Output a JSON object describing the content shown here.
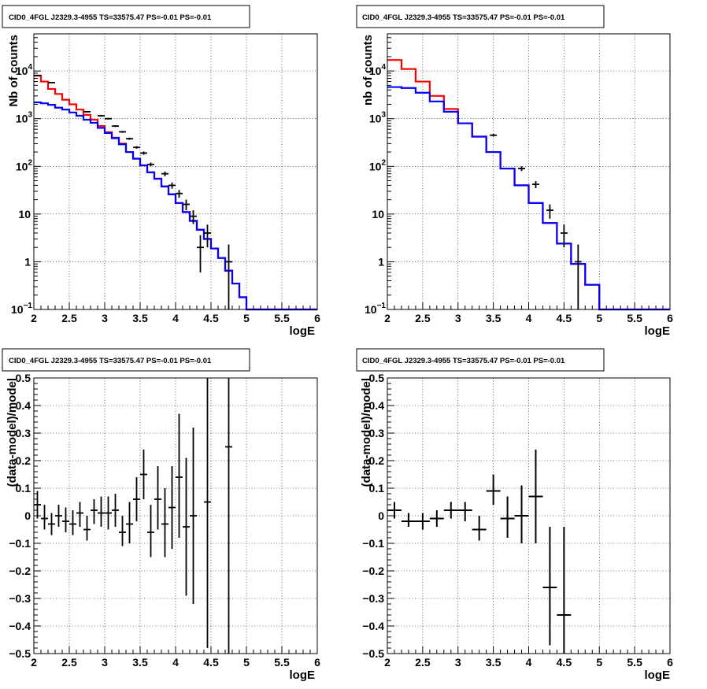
{
  "chart_data": [
    {
      "type": "histogram",
      "title": "CID0_4FGL J2329.3-4955 TS=33575.47 PS=-0.01 PS=-0.01",
      "xlabel": "logE",
      "ylabel": "Nb of counts",
      "xlim": [
        2,
        6
      ],
      "ylim": [
        0.1,
        60000
      ],
      "yscale": "log",
      "xticks": [
        "2",
        "2.5",
        "3",
        "3.5",
        "4",
        "4.5",
        "5",
        "5.5",
        "6"
      ],
      "yticks": [
        {
          "v": 0.1,
          "label": "10",
          "exp": "−1"
        },
        {
          "v": 1,
          "label": "1",
          "exp": ""
        },
        {
          "v": 10,
          "label": "10",
          "exp": ""
        },
        {
          "v": 100,
          "label": "10",
          "exp": "2"
        },
        {
          "v": 1000,
          "label": "10",
          "exp": "3"
        },
        {
          "v": 10000,
          "label": "10",
          "exp": "4"
        }
      ],
      "grid": true,
      "series": [
        {
          "color": "#ff0000",
          "style": "step",
          "edges": [
            2.0,
            2.1,
            2.2,
            2.3,
            2.4,
            2.5,
            2.6,
            2.7,
            2.8,
            2.9,
            3.0,
            3.1,
            3.2,
            3.3,
            3.4,
            3.5,
            3.6,
            3.7,
            3.8,
            3.9,
            4.0,
            4.1,
            4.2,
            4.3,
            4.4,
            4.5,
            4.6,
            4.7,
            4.8,
            4.9,
            5.0,
            5.1,
            5.2,
            5.3,
            5.4,
            5.5,
            5.6,
            5.7,
            5.8,
            5.9,
            6.0
          ],
          "values": [
            8000,
            6000,
            4200,
            3300,
            2500,
            2000,
            1550,
            1200,
            950,
            700,
            520,
            400,
            300,
            200,
            145,
            105,
            75,
            55,
            38,
            26,
            17,
            11,
            7.2,
            4.7,
            3.0,
            1.9,
            1.2,
            0.65,
            0.35,
            0.18,
            0.1,
            0.1,
            0.1,
            0.1,
            0.1,
            0.1,
            0.1,
            0.1,
            0.1,
            0.1
          ]
        },
        {
          "color": "#0000ff",
          "style": "step",
          "edges": [
            2.0,
            2.1,
            2.2,
            2.3,
            2.4,
            2.5,
            2.6,
            2.7,
            2.8,
            2.9,
            3.0,
            3.1,
            3.2,
            3.3,
            3.4,
            3.5,
            3.6,
            3.7,
            3.8,
            3.9,
            4.0,
            4.1,
            4.2,
            4.3,
            4.4,
            4.5,
            4.6,
            4.7,
            4.8,
            4.9,
            5.0,
            5.1,
            5.2,
            5.3,
            5.4,
            5.5,
            5.6,
            5.7,
            5.8,
            5.9,
            6.0
          ],
          "values": [
            2200,
            2100,
            1950,
            1700,
            1550,
            1350,
            1150,
            950,
            820,
            640,
            500,
            390,
            290,
            200,
            145,
            105,
            75,
            55,
            38,
            26,
            17,
            11,
            7.2,
            4.7,
            3.0,
            1.9,
            1.2,
            0.65,
            0.35,
            0.18,
            0.1,
            0.1,
            0.1,
            0.1,
            0.1,
            0.1,
            0.1,
            0.1,
            0.1,
            0.1
          ]
        }
      ],
      "points": [
        {
          "x": 2.05,
          "y": 8000,
          "ylo": 7900,
          "yhi": 8100
        },
        {
          "x": 2.25,
          "y": 5700,
          "ylo": 5600,
          "yhi": 5800
        },
        {
          "x": 2.75,
          "y": 1400,
          "ylo": 1350,
          "yhi": 1450
        },
        {
          "x": 2.95,
          "y": 1150,
          "ylo": 1100,
          "yhi": 1200
        },
        {
          "x": 3.05,
          "y": 1000,
          "ylo": 960,
          "yhi": 1040
        },
        {
          "x": 3.15,
          "y": 700,
          "ylo": 670,
          "yhi": 730
        },
        {
          "x": 3.25,
          "y": 530,
          "ylo": 505,
          "yhi": 555
        },
        {
          "x": 3.35,
          "y": 380,
          "ylo": 360,
          "yhi": 400
        },
        {
          "x": 3.45,
          "y": 250,
          "ylo": 235,
          "yhi": 265
        },
        {
          "x": 3.55,
          "y": 190,
          "ylo": 175,
          "yhi": 205
        },
        {
          "x": 3.65,
          "y": 110,
          "ylo": 100,
          "yhi": 120
        },
        {
          "x": 3.85,
          "y": 70,
          "ylo": 62,
          "yhi": 78
        },
        {
          "x": 3.95,
          "y": 40,
          "ylo": 34,
          "yhi": 46
        },
        {
          "x": 4.05,
          "y": 27,
          "ylo": 22,
          "yhi": 32
        },
        {
          "x": 4.15,
          "y": 16,
          "ylo": 12,
          "yhi": 20
        },
        {
          "x": 4.25,
          "y": 9,
          "ylo": 6.2,
          "yhi": 12
        },
        {
          "x": 4.35,
          "y": 2,
          "ylo": 0.6,
          "yhi": 3.6
        },
        {
          "x": 4.45,
          "y": 4,
          "ylo": 2,
          "yhi": 6
        },
        {
          "x": 4.75,
          "y": 1,
          "ylo": 0.1,
          "yhi": 2.3
        }
      ]
    },
    {
      "type": "histogram",
      "title": "CID0_4FGL J2329.3-4955 TS=33575.47 PS=-0.01 PS=-0.01",
      "xlabel": "logE",
      "ylabel": "nb of counts",
      "xlim": [
        2,
        6
      ],
      "ylim": [
        0.1,
        60000
      ],
      "yscale": "log",
      "xticks": [
        "2",
        "2.5",
        "3",
        "3.5",
        "4",
        "4.5",
        "5",
        "5.5",
        "6"
      ],
      "yticks": [
        {
          "v": 0.1,
          "label": "10",
          "exp": "−1"
        },
        {
          "v": 1,
          "label": "1",
          "exp": ""
        },
        {
          "v": 10,
          "label": "10",
          "exp": ""
        },
        {
          "v": 100,
          "label": "10",
          "exp": "2"
        },
        {
          "v": 1000,
          "label": "10",
          "exp": "3"
        },
        {
          "v": 10000,
          "label": "10",
          "exp": "4"
        }
      ],
      "grid": true,
      "series": [
        {
          "color": "#ff0000",
          "style": "step",
          "edges": [
            2.0,
            2.2,
            2.4,
            2.6,
            2.8,
            3.0,
            3.2,
            3.4,
            3.6,
            3.8,
            4.0,
            4.2,
            4.4,
            4.6,
            4.8,
            5.0,
            5.2,
            5.4,
            5.6,
            5.8,
            6.0
          ],
          "values": [
            17000,
            11000,
            6000,
            3000,
            1600,
            800,
            420,
            200,
            90,
            40,
            17,
            6.5,
            2.4,
            0.9,
            0.33,
            0.1,
            0.1,
            0.1,
            0.1,
            0.1
          ]
        },
        {
          "color": "#0000ff",
          "style": "step",
          "edges": [
            2.0,
            2.2,
            2.4,
            2.6,
            2.8,
            3.0,
            3.2,
            3.4,
            3.6,
            3.8,
            4.0,
            4.2,
            4.4,
            4.6,
            4.8,
            5.0,
            5.2,
            5.4,
            5.6,
            5.8,
            6.0
          ],
          "values": [
            4600,
            4400,
            3500,
            2300,
            1400,
            800,
            420,
            200,
            90,
            40,
            17,
            6.5,
            2.4,
            0.9,
            0.33,
            0.1,
            0.1,
            0.1,
            0.1,
            0.1
          ]
        }
      ],
      "points": [
        {
          "x": 3.5,
          "y": 450,
          "ylo": 420,
          "yhi": 480
        },
        {
          "x": 3.9,
          "y": 90,
          "ylo": 80,
          "yhi": 100
        },
        {
          "x": 4.1,
          "y": 42,
          "ylo": 35,
          "yhi": 49
        },
        {
          "x": 4.3,
          "y": 12,
          "ylo": 8,
          "yhi": 16
        },
        {
          "x": 4.5,
          "y": 4,
          "ylo": 2,
          "yhi": 6
        },
        {
          "x": 4.7,
          "y": 1,
          "ylo": 0.1,
          "yhi": 2.3
        }
      ]
    },
    {
      "type": "scatter",
      "title": "CID0_4FGL J2329.3-4955 TS=33575.47 PS=-0.01 PS=-0.01",
      "xlabel": "logE",
      "ylabel": "(data-model)/model",
      "xlim": [
        2,
        6
      ],
      "ylim": [
        -0.5,
        0.5
      ],
      "yscale": "linear",
      "xticks": [
        "2",
        "2.5",
        "3",
        "3.5",
        "4",
        "4.5",
        "5",
        "5.5",
        "6"
      ],
      "yticks": [
        {
          "v": -0.5,
          "label": "−0.5"
        },
        {
          "v": -0.4,
          "label": "−0.4"
        },
        {
          "v": -0.3,
          "label": "−0.3"
        },
        {
          "v": -0.2,
          "label": "−0.2"
        },
        {
          "v": -0.1,
          "label": "−0.1"
        },
        {
          "v": 0,
          "label": "0"
        },
        {
          "v": 0.1,
          "label": "0.1"
        },
        {
          "v": 0.2,
          "label": "0.2"
        },
        {
          "v": 0.3,
          "label": "0.3"
        },
        {
          "v": 0.4,
          "label": "0.4"
        },
        {
          "v": 0.5,
          "label": "0.5"
        }
      ],
      "grid": true,
      "halfwidth": 0.05,
      "points": [
        {
          "x": 2.05,
          "y": 0.04,
          "ylo": -0.01,
          "yhi": 0.09
        },
        {
          "x": 2.15,
          "y": -0.01,
          "ylo": -0.05,
          "yhi": 0.04
        },
        {
          "x": 2.25,
          "y": -0.03,
          "ylo": -0.07,
          "yhi": 0.01
        },
        {
          "x": 2.35,
          "y": 0.0,
          "ylo": -0.04,
          "yhi": 0.04
        },
        {
          "x": 2.45,
          "y": -0.02,
          "ylo": -0.06,
          "yhi": 0.03
        },
        {
          "x": 2.55,
          "y": -0.03,
          "ylo": -0.07,
          "yhi": 0.02
        },
        {
          "x": 2.65,
          "y": 0.01,
          "ylo": -0.04,
          "yhi": 0.05
        },
        {
          "x": 2.75,
          "y": -0.05,
          "ylo": -0.09,
          "yhi": 0.0
        },
        {
          "x": 2.85,
          "y": 0.02,
          "ylo": -0.03,
          "yhi": 0.06
        },
        {
          "x": 2.95,
          "y": 0.01,
          "ylo": -0.04,
          "yhi": 0.07
        },
        {
          "x": 3.05,
          "y": 0.01,
          "ylo": -0.05,
          "yhi": 0.07
        },
        {
          "x": 3.15,
          "y": 0.02,
          "ylo": -0.04,
          "yhi": 0.08
        },
        {
          "x": 3.25,
          "y": -0.06,
          "ylo": -0.11,
          "yhi": 0.0
        },
        {
          "x": 3.35,
          "y": -0.03,
          "ylo": -0.1,
          "yhi": 0.05
        },
        {
          "x": 3.45,
          "y": 0.06,
          "ylo": -0.02,
          "yhi": 0.14
        },
        {
          "x": 3.55,
          "y": 0.15,
          "ylo": 0.06,
          "yhi": 0.24
        },
        {
          "x": 3.65,
          "y": -0.06,
          "ylo": -0.15,
          "yhi": 0.04
        },
        {
          "x": 3.75,
          "y": 0.06,
          "ylo": -0.05,
          "yhi": 0.18
        },
        {
          "x": 3.85,
          "y": -0.03,
          "ylo": -0.15,
          "yhi": 0.1
        },
        {
          "x": 3.95,
          "y": 0.03,
          "ylo": -0.12,
          "yhi": 0.18
        },
        {
          "x": 4.05,
          "y": 0.14,
          "ylo": -0.08,
          "yhi": 0.37
        },
        {
          "x": 4.15,
          "y": -0.04,
          "ylo": -0.29,
          "yhi": 0.21
        },
        {
          "x": 4.25,
          "y": 0.0,
          "ylo": -0.32,
          "yhi": 0.32
        },
        {
          "x": 4.45,
          "y": 0.05,
          "ylo": -0.48,
          "yhi": 0.5
        },
        {
          "x": 4.75,
          "y": 0.25,
          "ylo": -0.5,
          "yhi": 0.5
        }
      ]
    },
    {
      "type": "scatter",
      "title": "CID0_4FGL J2329.3-4955 TS=33575.47 PS=-0.01 PS=-0.01",
      "xlabel": "logE",
      "ylabel": "(data-model)/model",
      "xlim": [
        2,
        6
      ],
      "ylim": [
        -0.5,
        0.5
      ],
      "yscale": "linear",
      "xticks": [
        "2",
        "2.5",
        "3",
        "3.5",
        "4",
        "4.5",
        "5",
        "5.5",
        "6"
      ],
      "yticks": [
        {
          "v": -0.5,
          "label": "−0.5"
        },
        {
          "v": -0.4,
          "label": "−0.4"
        },
        {
          "v": -0.3,
          "label": "−0.3"
        },
        {
          "v": -0.2,
          "label": "−0.2"
        },
        {
          "v": -0.1,
          "label": "−0.1"
        },
        {
          "v": 0,
          "label": "0"
        },
        {
          "v": 0.1,
          "label": "0.1"
        },
        {
          "v": 0.2,
          "label": "0.2"
        },
        {
          "v": 0.3,
          "label": "0.3"
        },
        {
          "v": 0.4,
          "label": "0.4"
        },
        {
          "v": 0.5,
          "label": "0.5"
        }
      ],
      "grid": true,
      "halfwidth": 0.1,
      "points": [
        {
          "x": 2.1,
          "y": 0.02,
          "ylo": -0.01,
          "yhi": 0.05
        },
        {
          "x": 2.3,
          "y": -0.02,
          "ylo": -0.04,
          "yhi": 0.01
        },
        {
          "x": 2.5,
          "y": -0.02,
          "ylo": -0.05,
          "yhi": 0.01
        },
        {
          "x": 2.7,
          "y": -0.01,
          "ylo": -0.04,
          "yhi": 0.02
        },
        {
          "x": 2.9,
          "y": 0.02,
          "ylo": -0.01,
          "yhi": 0.05
        },
        {
          "x": 3.1,
          "y": 0.02,
          "ylo": -0.02,
          "yhi": 0.05
        },
        {
          "x": 3.3,
          "y": -0.05,
          "ylo": -0.09,
          "yhi": 0.0
        },
        {
          "x": 3.5,
          "y": 0.09,
          "ylo": 0.04,
          "yhi": 0.15
        },
        {
          "x": 3.7,
          "y": -0.01,
          "ylo": -0.08,
          "yhi": 0.07
        },
        {
          "x": 3.9,
          "y": 0.0,
          "ylo": -0.1,
          "yhi": 0.11
        },
        {
          "x": 4.1,
          "y": 0.07,
          "ylo": -0.1,
          "yhi": 0.24
        },
        {
          "x": 4.3,
          "y": -0.26,
          "ylo": -0.47,
          "yhi": -0.04
        },
        {
          "x": 4.5,
          "y": -0.36,
          "ylo": -0.5,
          "yhi": -0.04
        }
      ]
    }
  ]
}
